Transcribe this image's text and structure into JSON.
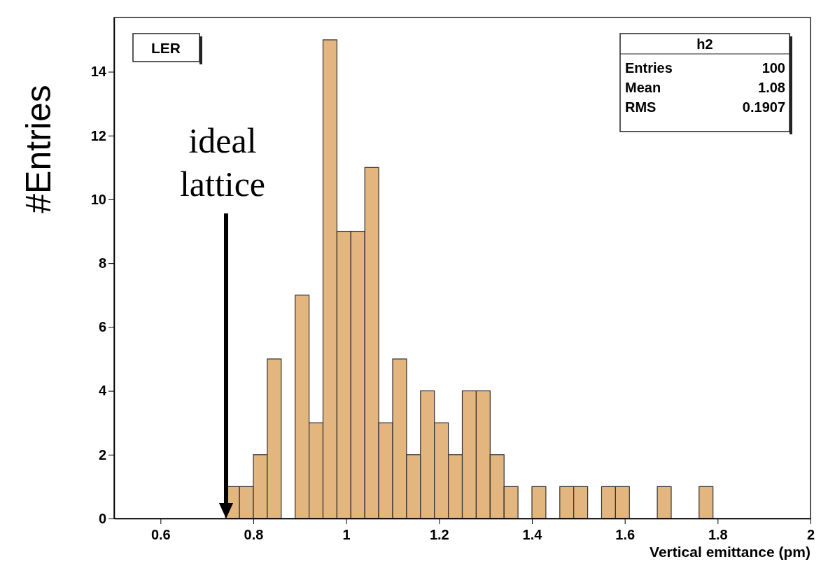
{
  "chart_data": {
    "type": "histogram",
    "xlabel": "Vertical emittance (pm)",
    "ylabel": "#Entries",
    "bins": [
      0.74,
      0.77,
      0.8,
      0.83,
      0.86,
      0.89,
      0.92,
      0.95,
      0.98,
      1.01,
      1.04,
      1.07,
      1.1,
      1.13,
      1.16,
      1.19,
      1.22,
      1.25,
      1.28,
      1.31,
      1.34,
      1.37,
      1.4,
      1.43,
      1.46,
      1.49,
      1.52,
      1.55,
      1.58,
      1.61,
      1.64,
      1.67,
      1.7,
      1.73,
      1.76,
      1.79
    ],
    "values": [
      1,
      1,
      2,
      5,
      0,
      7,
      3,
      15,
      9,
      9,
      11,
      3,
      5,
      2,
      4,
      3,
      2,
      4,
      4,
      2,
      1,
      0,
      1,
      0,
      1,
      1,
      0,
      1,
      1,
      0,
      0,
      1,
      0,
      0,
      1
    ],
    "color": "#e3b67f",
    "xlim": [
      0.5,
      2
    ],
    "xticks": [
      {
        "value": 0.6,
        "label": "0.6"
      },
      {
        "value": 0.8,
        "label": "0.8"
      },
      1,
      {
        "value": 1.2,
        "label": "1.2"
      },
      {
        "value": 1.4,
        "label": "1.4"
      },
      {
        "value": 1.6,
        "label": "1.6"
      },
      {
        "value": 1.8,
        "label": "1.8"
      },
      2
    ],
    "ylim": [
      0,
      15.7
    ],
    "yticks": [
      0,
      2,
      4,
      6,
      8,
      10,
      12,
      14
    ],
    "grid": false,
    "annotations": [
      "LER",
      "h2",
      "Entries",
      "100",
      "Mean",
      "1.08",
      "RMS",
      "0.1907",
      "ideal lattice"
    ]
  }
}
